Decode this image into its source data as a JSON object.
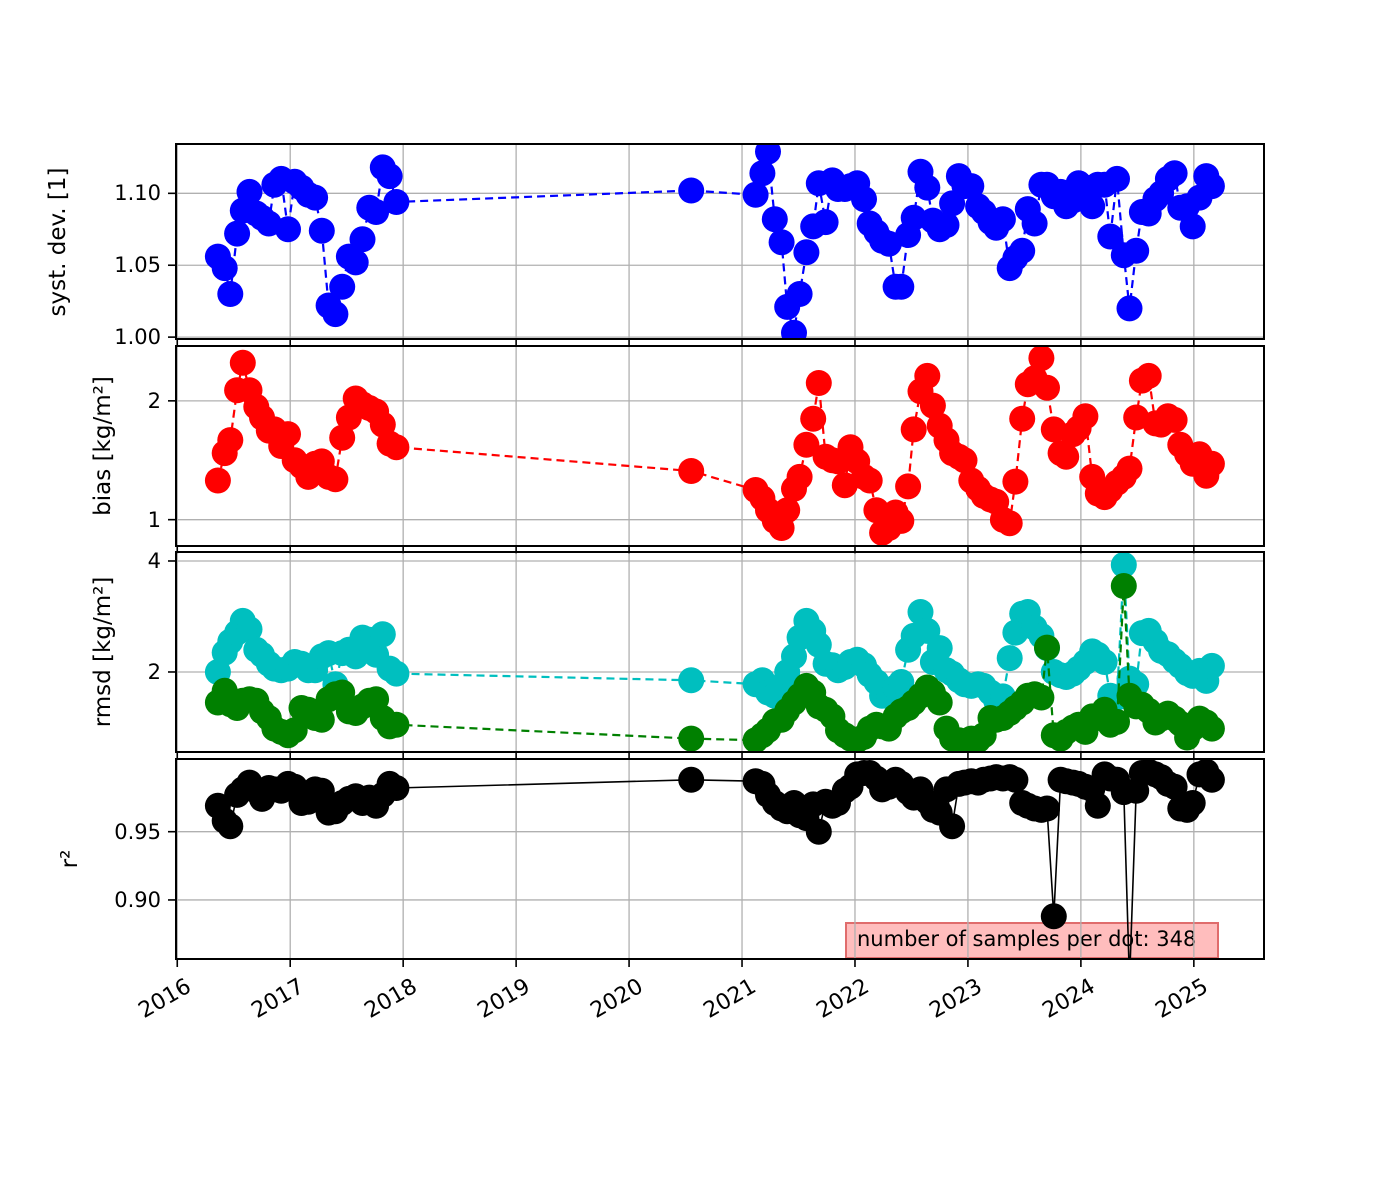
{
  "chart_data": {
    "type": "line",
    "title": "",
    "legend": "none",
    "grid": true,
    "x_axis": {
      "range": [
        2015.98,
        2025.63
      ],
      "ticks": [
        2016,
        2017,
        2018,
        2019,
        2020,
        2021,
        2022,
        2023,
        2024,
        2025
      ],
      "tick_labels": [
        "2016",
        "2017",
        "2018",
        "2019",
        "2020",
        "2021",
        "2022",
        "2023",
        "2024",
        "2025"
      ]
    },
    "x": [
      2016.36,
      2016.42,
      2016.47,
      2016.53,
      2016.58,
      2016.64,
      2016.7,
      2016.75,
      2016.81,
      2016.86,
      2016.92,
      2016.98,
      2017.04,
      2017.1,
      2017.16,
      2017.22,
      2017.28,
      2017.34,
      2017.4,
      2017.46,
      2017.52,
      2017.58,
      2017.64,
      2017.7,
      2017.76,
      2017.82,
      2017.88,
      2017.94,
      2020.55,
      2021.12,
      2021.18,
      2021.23,
      2021.29,
      2021.35,
      2021.4,
      2021.46,
      2021.51,
      2021.57,
      2021.63,
      2021.68,
      2021.74,
      2021.8,
      2021.85,
      2021.91,
      2021.96,
      2022.02,
      2022.08,
      2022.13,
      2022.19,
      2022.24,
      2022.3,
      2022.36,
      2022.41,
      2022.47,
      2022.52,
      2022.58,
      2022.64,
      2022.69,
      2022.75,
      2022.81,
      2022.86,
      2022.92,
      2022.97,
      2023.03,
      2023.09,
      2023.14,
      2023.2,
      2023.25,
      2023.31,
      2023.37,
      2023.42,
      2023.48,
      2023.53,
      2023.59,
      2023.65,
      2023.7,
      2023.76,
      2023.82,
      2023.87,
      2023.93,
      2023.98,
      2024.04,
      2024.1,
      2024.15,
      2024.21,
      2024.26,
      2024.32,
      2024.38,
      2024.43,
      2024.49,
      2024.54,
      2024.6,
      2024.66,
      2024.71,
      2024.77,
      2024.83,
      2024.88,
      2024.94,
      2024.99,
      2025.05,
      2025.11,
      2025.16
    ],
    "panels": [
      {
        "name": "syst-dev",
        "ylabel": "syst. dev. [1]",
        "yrange": [
          0.998,
          1.135
        ],
        "yticks": [
          1.0,
          1.05,
          1.1
        ],
        "ytick_labels": [
          "1.00",
          "1.05",
          "1.10"
        ],
        "series": [
          {
            "name": "syst. dev.",
            "color": "#0000ff",
            "linestyle": "dashed",
            "values": [
              1.056,
              1.048,
              1.03,
              1.072,
              1.088,
              1.101,
              1.086,
              1.083,
              1.079,
              1.106,
              1.11,
              1.075,
              1.108,
              1.104,
              1.099,
              1.097,
              1.074,
              1.022,
              1.016,
              1.035,
              1.056,
              1.052,
              1.068,
              1.09,
              1.087,
              1.118,
              1.112,
              1.094,
              1.102,
              1.099,
              1.114,
              1.129,
              1.082,
              1.066,
              1.021,
              1.003,
              1.03,
              1.059,
              1.077,
              1.107,
              1.08,
              1.109,
              1.103,
              1.103,
              1.105,
              1.107,
              1.096,
              1.079,
              1.073,
              1.067,
              1.065,
              1.035,
              1.035,
              1.071,
              1.083,
              1.115,
              1.104,
              1.081,
              1.075,
              1.078,
              1.093,
              1.112,
              1.105,
              1.105,
              1.091,
              1.087,
              1.08,
              1.076,
              1.082,
              1.048,
              1.055,
              1.06,
              1.089,
              1.079,
              1.106,
              1.106,
              1.098,
              1.101,
              1.091,
              1.095,
              1.107,
              1.104,
              1.091,
              1.106,
              1.106,
              1.07,
              1.11,
              1.057,
              1.02,
              1.06,
              1.087,
              1.086,
              1.096,
              1.1,
              1.11,
              1.114,
              1.09,
              1.091,
              1.077,
              1.097,
              1.112,
              1.105
            ]
          }
        ]
      },
      {
        "name": "bias",
        "ylabel": "bias [kg/m²]",
        "yrange": [
          0.77,
          2.47
        ],
        "yticks": [
          1,
          2
        ],
        "ytick_labels": [
          "1",
          "2"
        ],
        "series": [
          {
            "name": "bias",
            "color": "#ff0000",
            "linestyle": "dashed",
            "values": [
              1.33,
              1.56,
              1.67,
              2.09,
              2.32,
              2.09,
              1.95,
              1.86,
              1.75,
              1.76,
              1.62,
              1.72,
              1.5,
              1.45,
              1.36,
              1.47,
              1.49,
              1.36,
              1.34,
              1.69,
              1.86,
              2.02,
              1.97,
              1.94,
              1.91,
              1.8,
              1.64,
              1.61,
              1.41,
              1.25,
              1.18,
              1.08,
              0.99,
              0.93,
              1.08,
              1.26,
              1.36,
              1.63,
              1.85,
              2.15,
              1.53,
              1.5,
              1.49,
              1.29,
              1.61,
              1.49,
              1.36,
              1.33,
              1.08,
              0.89,
              0.93,
              1.06,
              0.99,
              1.28,
              1.76,
              2.08,
              2.21,
              1.96,
              1.79,
              1.67,
              1.56,
              1.53,
              1.5,
              1.33,
              1.26,
              1.2,
              1.17,
              1.15,
              1.0,
              0.97,
              1.32,
              1.85,
              2.14,
              2.19,
              2.36,
              2.11,
              1.76,
              1.56,
              1.53,
              1.72,
              1.77,
              1.87,
              1.36,
              1.22,
              1.19,
              1.25,
              1.31,
              1.36,
              1.43,
              1.86,
              2.17,
              2.21,
              1.81,
              1.8,
              1.87,
              1.84,
              1.63,
              1.55,
              1.47,
              1.55,
              1.37,
              1.47
            ]
          }
        ]
      },
      {
        "name": "rmsd",
        "ylabel": "rmsd [kg/m²]",
        "yrange": [
          0.54,
          4.18
        ],
        "yticks": [
          2,
          4
        ],
        "ytick_labels": [
          "2",
          "4"
        ],
        "series": [
          {
            "name": "rmsd",
            "color": "#00bfbf",
            "linestyle": "dashed",
            "values": [
              2.0,
              2.35,
              2.55,
              2.71,
              2.92,
              2.77,
              2.4,
              2.31,
              2.15,
              2.06,
              2.03,
              2.06,
              2.18,
              2.15,
              2.03,
              2.03,
              2.28,
              2.34,
              1.78,
              2.34,
              2.4,
              2.28,
              2.62,
              2.58,
              2.31,
              2.68,
              2.06,
              1.97,
              1.85,
              1.78,
              1.85,
              1.63,
              1.57,
              1.75,
              2.0,
              2.28,
              2.62,
              2.92,
              2.74,
              2.49,
              2.15,
              2.12,
              2.03,
              2.09,
              2.18,
              2.22,
              2.12,
              1.95,
              1.82,
              1.57,
              1.56,
              1.72,
              1.82,
              2.4,
              2.65,
              3.08,
              2.74,
              2.18,
              2.43,
              2.03,
              1.97,
              1.85,
              1.78,
              1.75,
              1.78,
              1.75,
              1.63,
              1.48,
              1.56,
              2.25,
              2.71,
              3.05,
              3.08,
              2.8,
              2.65,
              2.43,
              2.0,
              1.94,
              1.91,
              1.97,
              2.06,
              2.18,
              2.37,
              2.31,
              2.18,
              1.57,
              1.54,
              3.93,
              1.88,
              1.78,
              2.7,
              2.74,
              2.55,
              2.38,
              2.32,
              2.2,
              2.11,
              1.98,
              1.93,
              2.02,
              1.84,
              2.11
            ]
          },
          {
            "name": "rmsd corrected",
            "color": "#008000",
            "linestyle": "dashed",
            "values": [
              1.45,
              1.66,
              1.42,
              1.35,
              1.48,
              1.51,
              1.48,
              1.29,
              1.17,
              0.98,
              0.92,
              0.86,
              0.95,
              1.35,
              1.32,
              1.17,
              1.14,
              1.51,
              1.6,
              1.63,
              1.29,
              1.26,
              1.38,
              1.48,
              1.51,
              1.17,
              1.02,
              1.05,
              0.8,
              0.77,
              0.86,
              0.95,
              1.11,
              1.14,
              1.3,
              1.45,
              1.57,
              1.75,
              1.63,
              1.38,
              1.32,
              1.2,
              0.95,
              0.86,
              0.8,
              0.77,
              0.83,
              0.98,
              1.05,
              1.02,
              0.98,
              1.2,
              1.29,
              1.35,
              1.45,
              1.57,
              1.72,
              1.63,
              1.45,
              0.98,
              0.8,
              0.77,
              0.74,
              0.8,
              0.77,
              0.86,
              1.17,
              1.14,
              1.17,
              1.26,
              1.35,
              1.45,
              1.57,
              1.6,
              1.54,
              2.44,
              0.86,
              0.8,
              0.92,
              1.0,
              1.05,
              0.92,
              1.2,
              1.17,
              1.32,
              1.05,
              1.1,
              3.55,
              1.57,
              1.38,
              1.41,
              1.3,
              1.09,
              1.16,
              1.25,
              1.16,
              1.07,
              0.82,
              0.98,
              1.16,
              1.09,
              0.98
            ]
          }
        ]
      },
      {
        "name": "r2",
        "ylabel": "r²",
        "yrange": [
          0.856,
          1.004
        ],
        "yticks": [
          0.9,
          0.95
        ],
        "ytick_labels": [
          "0.90",
          "0.95"
        ],
        "series": [
          {
            "name": "r²",
            "color": "#000000",
            "linestyle": "solid",
            "values": [
              0.969,
              0.958,
              0.954,
              0.977,
              0.981,
              0.986,
              0.98,
              0.974,
              0.982,
              0.981,
              0.98,
              0.985,
              0.983,
              0.971,
              0.972,
              0.981,
              0.98,
              0.964,
              0.965,
              0.971,
              0.974,
              0.976,
              0.971,
              0.975,
              0.969,
              0.977,
              0.985,
              0.982,
              0.988,
              0.987,
              0.985,
              0.977,
              0.971,
              0.967,
              0.965,
              0.971,
              0.962,
              0.96,
              0.97,
              0.95,
              0.972,
              0.969,
              0.971,
              0.98,
              0.983,
              0.992,
              0.993,
              0.993,
              0.989,
              0.981,
              0.983,
              0.988,
              0.985,
              0.979,
              0.975,
              0.981,
              0.972,
              0.966,
              0.964,
              0.981,
              0.954,
              0.985,
              0.986,
              0.987,
              0.986,
              0.988,
              0.989,
              0.99,
              0.989,
              0.99,
              0.988,
              0.971,
              0.969,
              0.967,
              0.966,
              0.967,
              0.888,
              0.988,
              0.987,
              0.986,
              0.985,
              0.983,
              0.981,
              0.969,
              0.992,
              0.989,
              0.988,
              0.979,
              0.84,
              0.98,
              0.993,
              0.994,
              0.992,
              0.99,
              0.985,
              0.983,
              0.967,
              0.966,
              0.971,
              0.992,
              0.994,
              0.988
            ]
          }
        ]
      }
    ],
    "annotation": {
      "text": "number of samples per dot: 348",
      "bg_color": "#ffbdbd",
      "border_color": "#e06c6c"
    },
    "style": {
      "grid_color": "#b0b0b0",
      "spine_color": "#000000",
      "background": "#ffffff"
    }
  }
}
